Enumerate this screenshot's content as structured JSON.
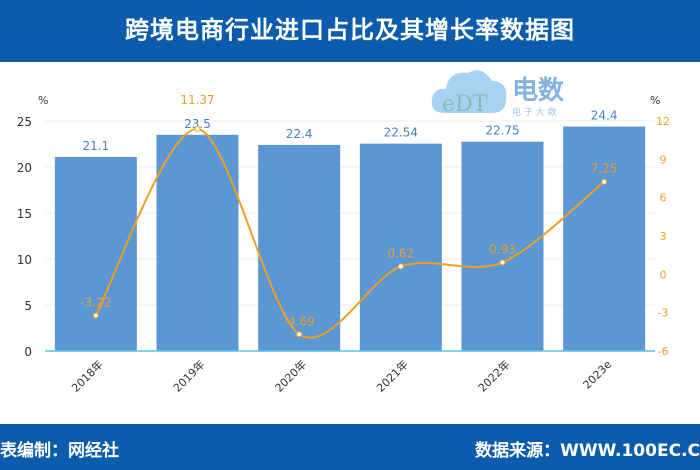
{
  "header": {
    "title": "跨境电商行业进口占比及其增长率数据图"
  },
  "footer": {
    "left": "表编制：网经社",
    "right": "数据来源：WWW.100EC.C"
  },
  "logo": {
    "text": "电数",
    "sub": "电 子 大 数"
  },
  "chart_data": {
    "type": "bar+line",
    "categories": [
      "2018年",
      "2019年",
      "2020年",
      "2021年",
      "2022年",
      "2023e"
    ],
    "series": [
      {
        "type": "bar",
        "axis": "left",
        "values": [
          21.1,
          23.5,
          22.4,
          22.54,
          22.75,
          24.4
        ],
        "color": "#5b97d5"
      },
      {
        "type": "line",
        "axis": "right",
        "smooth": true,
        "values": [
          -3.22,
          11.37,
          -4.69,
          0.62,
          0.93,
          7.25
        ],
        "color": "#f0a020"
      }
    ],
    "left_axis": {
      "unit": "%",
      "ylim": [
        0,
        25
      ],
      "ticks": [
        0,
        5,
        10,
        15,
        20,
        25
      ]
    },
    "right_axis": {
      "unit": "%",
      "ylim": [
        -6,
        12
      ],
      "ticks": [
        -6,
        -3,
        0,
        3,
        6,
        9,
        12
      ],
      "color": "#f0a020"
    },
    "grid": true
  }
}
